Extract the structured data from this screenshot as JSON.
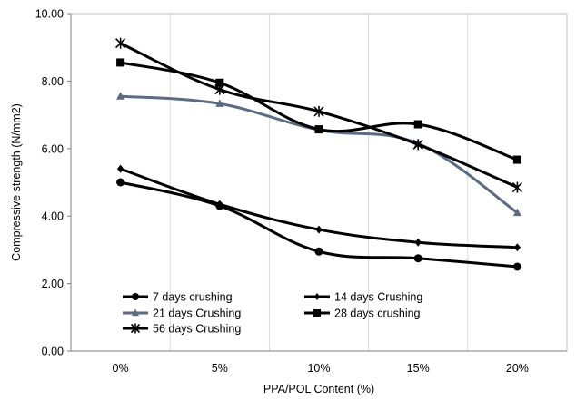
{
  "chart_data": {
    "type": "line",
    "title": "",
    "xlabel": "PPA/POL Content (%)",
    "ylabel": "Compressive strength (N/mm2)",
    "categories": [
      "0%",
      "5%",
      "10%",
      "15%",
      "20%"
    ],
    "ylim": [
      0,
      10
    ],
    "yticks": [
      "0.00",
      "2.00",
      "4.00",
      "6.00",
      "8.00",
      "10.00"
    ],
    "grid": "vertical",
    "legend_position": "lower-left",
    "series": [
      {
        "name": "7 days crushing",
        "marker": "circle",
        "color": "#000000",
        "values": [
          5.0,
          4.3,
          2.95,
          2.75,
          2.5
        ]
      },
      {
        "name": "14 days Crushing",
        "marker": "diamond",
        "color": "#000000",
        "values": [
          5.4,
          4.35,
          3.6,
          3.22,
          3.07
        ]
      },
      {
        "name": "21 days Crushing",
        "marker": "triangle",
        "color": "#5b6b84",
        "values": [
          7.55,
          7.33,
          6.55,
          6.15,
          4.1
        ]
      },
      {
        "name": "28 days crushing",
        "marker": "square",
        "color": "#000000",
        "values": [
          8.55,
          7.95,
          6.57,
          6.72,
          5.67
        ]
      },
      {
        "name": "56 days Crushing",
        "marker": "star",
        "color": "#000000",
        "values": [
          9.12,
          7.75,
          7.1,
          6.12,
          4.85
        ]
      }
    ]
  }
}
